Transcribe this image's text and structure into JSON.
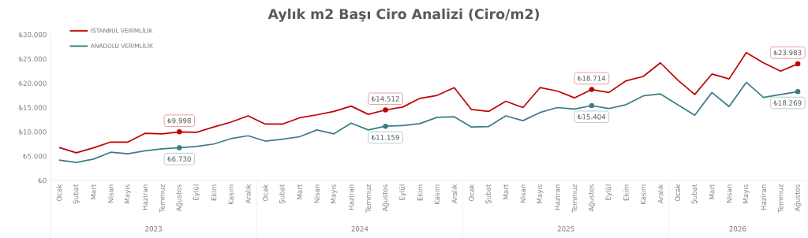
{
  "chart_data": {
    "type": "line",
    "title": "Aylık m2 Başı Ciro Analizi (Ciro/m2)",
    "categories": [
      "Ocak",
      "Şubat",
      "Mart",
      "Nisan",
      "Mayıs",
      "Haziran",
      "Temmuz",
      "Ağustos",
      "Eylül",
      "Ekim",
      "Kasım",
      "Aralık",
      "Ocak",
      "Şubat",
      "Mart",
      "Nisan",
      "Mayıs",
      "Haziran",
      "Temmuz",
      "Ağustos",
      "Eylül",
      "Ekim",
      "Kasım",
      "Aralık",
      "Ocak",
      "Şubat",
      "Mart",
      "Nisan",
      "Mayıs",
      "Haziran",
      "Temmuz",
      "Ağustos",
      "Eylül",
      "Ekim",
      "Kasım",
      "Aralık",
      "Ocak",
      "Şubat",
      "Mart",
      "Nisan",
      "Mayıs",
      "Haziran",
      "Temmuz",
      "Ağustos"
    ],
    "annotations": [
      "2023",
      "2024",
      "2025",
      "2026"
    ],
    "series": [
      {
        "name": "İSTANBUL VERİMLİLİK",
        "color": "#c00000",
        "values": [
          6800,
          5700,
          6700,
          7900,
          7900,
          9700,
          9600,
          9998,
          9900,
          11000,
          12000,
          13300,
          11600,
          11600,
          12900,
          13500,
          14200,
          15300,
          13600,
          14512,
          15100,
          16900,
          17500,
          19100,
          14600,
          14200,
          16300,
          15000,
          19100,
          18400,
          17000,
          18714,
          18100,
          20500,
          21400,
          24200,
          20700,
          17700,
          21900,
          20900,
          26300,
          24200,
          22500,
          23983
        ],
        "value_labels": [
          null,
          null,
          null,
          null,
          null,
          null,
          null,
          "₺9.998",
          null,
          null,
          null,
          null,
          null,
          null,
          null,
          null,
          null,
          null,
          null,
          "₺14.512",
          null,
          null,
          null,
          null,
          null,
          null,
          null,
          null,
          null,
          null,
          null,
          "₺18.714",
          null,
          null,
          null,
          null,
          null,
          null,
          null,
          null,
          null,
          null,
          null,
          "₺23.983"
        ]
      },
      {
        "name": "ANADOLU VERİMLİLİK",
        "color": "#3a7d87",
        "values": [
          4200,
          3700,
          4400,
          5800,
          5500,
          6100,
          6500,
          6730,
          7000,
          7500,
          8600,
          9200,
          8100,
          8500,
          9000,
          10400,
          9600,
          11800,
          10400,
          11159,
          11300,
          11700,
          13000,
          13100,
          11000,
          11100,
          13300,
          12300,
          14000,
          15000,
          14700,
          15404,
          14800,
          15600,
          17400,
          17800,
          15600,
          13400,
          18100,
          15200,
          20200,
          17100,
          17700,
          18269
        ],
        "value_labels": [
          null,
          null,
          null,
          null,
          null,
          null,
          null,
          "₺6.730",
          null,
          null,
          null,
          null,
          null,
          null,
          null,
          null,
          null,
          null,
          null,
          "₺11.159",
          null,
          null,
          null,
          null,
          null,
          null,
          null,
          null,
          null,
          null,
          null,
          "₺15.404",
          null,
          null,
          null,
          null,
          null,
          null,
          null,
          null,
          null,
          null,
          null,
          "₺18.269"
        ]
      }
    ],
    "ylim": [
      0,
      30000
    ],
    "yticks": [
      {
        "value": 0,
        "label": "₺0"
      },
      {
        "value": 5000,
        "label": "₺5.000"
      },
      {
        "value": 10000,
        "label": "₺10.000"
      },
      {
        "value": 15000,
        "label": "₺15.000"
      },
      {
        "value": 20000,
        "label": "₺20.000"
      },
      {
        "value": 25000,
        "label": "₺25.000"
      },
      {
        "value": 30000,
        "label": "₺30.000"
      }
    ],
    "legend": "top left",
    "line_style": "solid"
  }
}
